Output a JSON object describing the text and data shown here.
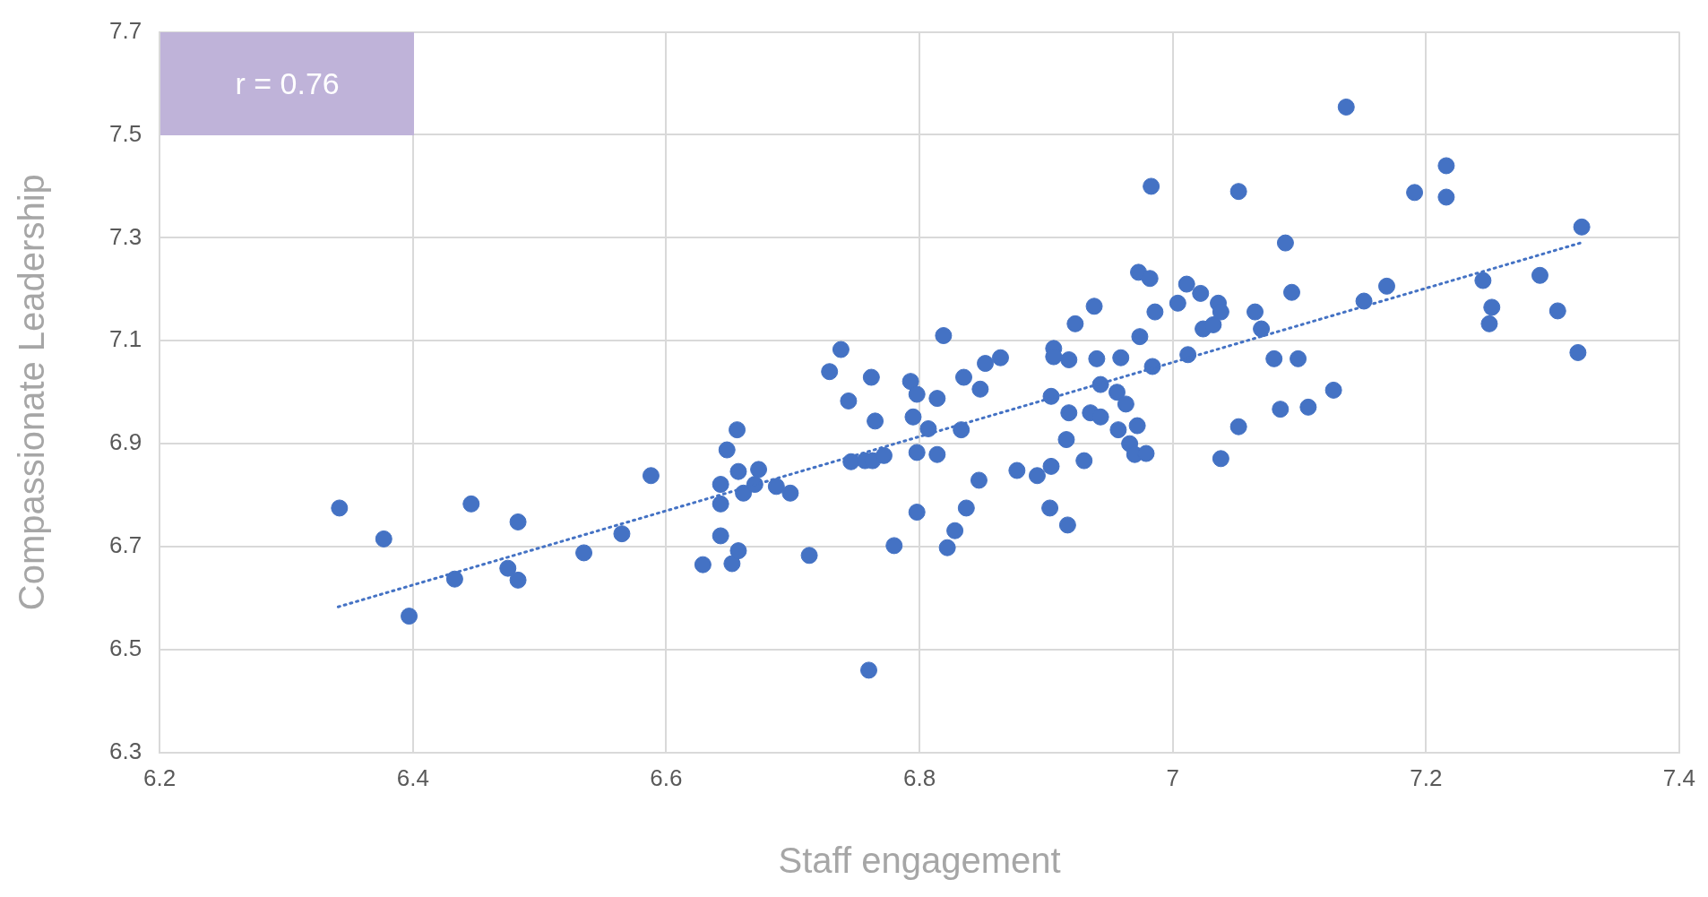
{
  "chart_data": {
    "type": "scatter",
    "xlabel": "Staff engagement",
    "ylabel": "Compassionate Leadership",
    "annotations": [
      "r = 0.76"
    ],
    "xlim": [
      6.2,
      7.4
    ],
    "xticks": [
      6.2,
      6.4,
      6.6,
      6.8,
      {
        "value": 7,
        "label": "7"
      },
      7.2,
      7.4
    ],
    "ylim": [
      6.3,
      7.7
    ],
    "yticks": [
      6.3,
      6.5,
      6.7,
      6.9,
      7.1,
      7.3,
      7.5,
      7.7
    ],
    "grid": true,
    "legend": false,
    "marker": "circle",
    "series": [
      {
        "type": "scatter",
        "color": "#4472c4",
        "x": [
          6.342,
          6.377,
          6.397,
          6.433,
          6.446,
          6.475,
          6.483,
          6.483,
          6.535,
          6.565,
          6.588,
          6.629,
          6.643,
          6.643,
          6.643,
          6.648,
          6.656,
          6.657,
          6.652,
          6.657,
          6.661,
          6.67,
          6.673,
          6.687,
          6.698,
          6.713,
          6.729,
          6.738,
          6.744,
          6.746,
          6.757,
          6.762,
          6.765,
          6.763,
          6.772,
          6.76,
          6.78,
          6.793,
          6.798,
          6.795,
          6.798,
          6.798,
          6.807,
          6.814,
          6.814,
          6.819,
          6.822,
          6.828,
          6.833,
          6.835,
          6.837,
          6.847,
          6.848,
          6.852,
          6.864,
          6.877,
          6.893,
          6.903,
          6.904,
          6.904,
          6.906,
          6.906,
          6.916,
          6.918,
          6.918,
          6.917,
          6.923,
          6.93,
          6.935,
          6.938,
          6.94,
          6.943,
          6.943,
          6.956,
          6.957,
          6.959,
          6.963,
          6.966,
          6.97,
          6.972,
          6.974,
          6.973,
          6.979,
          6.982,
          6.983,
          6.984,
          6.986,
          7.004,
          7.011,
          7.012,
          7.022,
          7.024,
          7.032,
          7.036,
          7.038,
          7.038,
          7.052,
          7.052,
          7.065,
          7.07,
          7.08,
          7.085,
          7.089,
          7.094,
          7.099,
          7.107,
          7.127,
          7.137,
          7.151,
          7.169,
          7.191,
          7.216,
          7.216,
          7.245,
          7.252,
          7.25,
          7.29,
          7.304,
          7.32,
          7.323
        ],
        "values": [
          6.775,
          6.715,
          6.565,
          6.637,
          6.783,
          6.658,
          6.748,
          6.635,
          6.688,
          6.725,
          6.838,
          6.665,
          6.821,
          6.783,
          6.721,
          6.888,
          6.927,
          6.846,
          6.667,
          6.692,
          6.804,
          6.821,
          6.85,
          6.817,
          6.804,
          6.683,
          7.04,
          7.083,
          6.983,
          6.865,
          6.867,
          7.029,
          6.944,
          6.867,
          6.877,
          6.46,
          6.702,
          7.021,
          6.996,
          6.952,
          6.883,
          6.767,
          6.929,
          6.988,
          6.879,
          7.11,
          6.698,
          6.731,
          6.927,
          7.029,
          6.775,
          6.829,
          7.006,
          7.056,
          7.067,
          6.848,
          6.838,
          6.775,
          6.856,
          6.992,
          7.085,
          7.069,
          6.908,
          6.96,
          7.063,
          6.742,
          7.133,
          6.867,
          6.96,
          7.167,
          7.065,
          7.015,
          6.952,
          7.0,
          6.927,
          7.067,
          6.977,
          6.9,
          6.879,
          6.935,
          7.108,
          7.233,
          6.881,
          7.221,
          7.4,
          7.05,
          7.156,
          7.173,
          7.21,
          7.073,
          7.192,
          7.123,
          7.131,
          7.173,
          7.156,
          6.871,
          7.39,
          6.933,
          7.156,
          7.123,
          7.065,
          6.967,
          7.29,
          7.194,
          7.065,
          6.971,
          7.004,
          7.554,
          7.177,
          7.206,
          7.388,
          7.44,
          7.379,
          7.217,
          7.165,
          7.133,
          7.227,
          7.158,
          7.077,
          7.321
        ]
      },
      {
        "type": "line",
        "color": "#4472c4",
        "line_style": "dotted",
        "marker": "none",
        "x": [
          6.341,
          7.322
        ],
        "values": [
          6.583,
          7.29
        ]
      }
    ]
  }
}
